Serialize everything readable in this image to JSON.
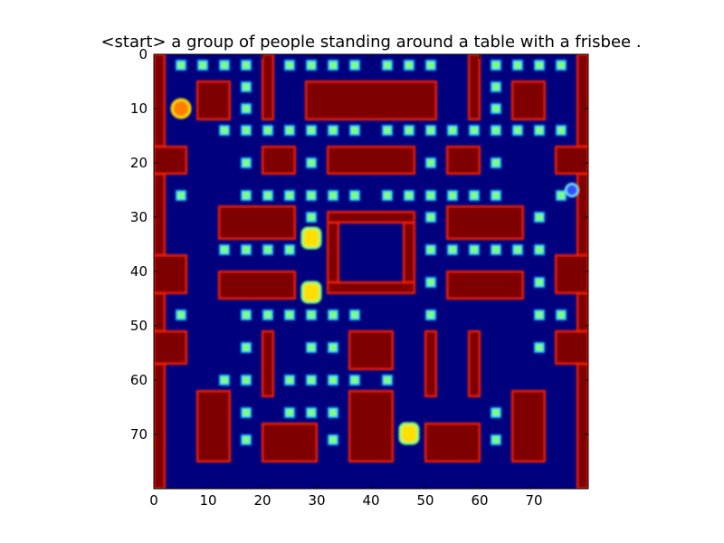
{
  "title": "<start> a group of people standing around a table with a frisbee .",
  "image": {
    "width": 80,
    "height": 80,
    "xlim": [
      0,
      80
    ],
    "ylim": [
      80,
      0
    ],
    "colormap": "jet",
    "background_color": "#00007f",
    "wall_color": "#7f0000",
    "edge_color": "#ff2000",
    "pellet_color": "#7fff7f",
    "pellet_edge_color": "#00b5ff",
    "ghost_color": "#ffe000",
    "pacman_color": "#ff8000"
  },
  "x_ticks": [
    0,
    10,
    20,
    30,
    40,
    50,
    60,
    70
  ],
  "y_ticks": [
    0,
    10,
    20,
    30,
    40,
    50,
    60,
    70
  ],
  "walls": [
    {
      "x": 0,
      "y": 0,
      "w": 2,
      "h": 80
    },
    {
      "x": 78,
      "y": 0,
      "w": 2,
      "h": 80
    },
    {
      "x": 0,
      "y": 17,
      "w": 6,
      "h": 5
    },
    {
      "x": 74,
      "y": 17,
      "w": 6,
      "h": 5
    },
    {
      "x": 0,
      "y": 37,
      "w": 6,
      "h": 7
    },
    {
      "x": 74,
      "y": 37,
      "w": 6,
      "h": 7
    },
    {
      "x": 0,
      "y": 51,
      "w": 6,
      "h": 6
    },
    {
      "x": 74,
      "y": 51,
      "w": 6,
      "h": 6
    },
    {
      "x": 8,
      "y": 5,
      "w": 6,
      "h": 7
    },
    {
      "x": 66,
      "y": 5,
      "w": 6,
      "h": 7
    },
    {
      "x": 20,
      "y": 0,
      "w": 2,
      "h": 12
    },
    {
      "x": 58,
      "y": 0,
      "w": 2,
      "h": 12
    },
    {
      "x": 28,
      "y": 5,
      "w": 24,
      "h": 7
    },
    {
      "x": 20,
      "y": 17,
      "w": 6,
      "h": 5
    },
    {
      "x": 54,
      "y": 17,
      "w": 6,
      "h": 5
    },
    {
      "x": 32,
      "y": 17,
      "w": 16,
      "h": 5
    },
    {
      "x": 12,
      "y": 28,
      "w": 14,
      "h": 6
    },
    {
      "x": 54,
      "y": 28,
      "w": 14,
      "h": 6
    },
    {
      "x": 12,
      "y": 40,
      "w": 14,
      "h": 5
    },
    {
      "x": 54,
      "y": 40,
      "w": 14,
      "h": 5
    },
    {
      "x": 32,
      "y": 29,
      "w": 2,
      "h": 15
    },
    {
      "x": 46,
      "y": 29,
      "w": 2,
      "h": 15
    },
    {
      "x": 32,
      "y": 29,
      "w": 16,
      "h": 2
    },
    {
      "x": 32,
      "y": 42,
      "w": 16,
      "h": 2
    },
    {
      "x": 20,
      "y": 51,
      "w": 2,
      "h": 12
    },
    {
      "x": 58,
      "y": 51,
      "w": 2,
      "h": 12
    },
    {
      "x": 36,
      "y": 51,
      "w": 8,
      "h": 7
    },
    {
      "x": 50,
      "y": 51,
      "w": 2,
      "h": 12
    },
    {
      "x": 8,
      "y": 62,
      "w": 6,
      "h": 13
    },
    {
      "x": 66,
      "y": 62,
      "w": 6,
      "h": 13
    },
    {
      "x": 20,
      "y": 68,
      "w": 10,
      "h": 7
    },
    {
      "x": 50,
      "y": 68,
      "w": 10,
      "h": 7
    },
    {
      "x": 36,
      "y": 62,
      "w": 8,
      "h": 13
    }
  ],
  "pellets": [
    [
      5,
      2
    ],
    [
      9,
      2
    ],
    [
      13,
      2
    ],
    [
      17,
      2
    ],
    [
      25,
      2
    ],
    [
      29,
      2
    ],
    [
      33,
      2
    ],
    [
      37,
      2
    ],
    [
      43,
      2
    ],
    [
      47,
      2
    ],
    [
      51,
      2
    ],
    [
      63,
      2
    ],
    [
      67,
      2
    ],
    [
      71,
      2
    ],
    [
      75,
      2
    ],
    [
      17,
      6
    ],
    [
      17,
      10
    ],
    [
      63,
      6
    ],
    [
      63,
      10
    ],
    [
      13,
      14
    ],
    [
      17,
      14
    ],
    [
      21,
      14
    ],
    [
      25,
      14
    ],
    [
      29,
      14
    ],
    [
      33,
      14
    ],
    [
      37,
      14
    ],
    [
      43,
      14
    ],
    [
      47,
      14
    ],
    [
      51,
      14
    ],
    [
      55,
      14
    ],
    [
      59,
      14
    ],
    [
      63,
      14
    ],
    [
      67,
      14
    ],
    [
      71,
      14
    ],
    [
      75,
      14
    ],
    [
      17,
      20
    ],
    [
      29,
      20
    ],
    [
      51,
      20
    ],
    [
      63,
      20
    ],
    [
      5,
      26
    ],
    [
      17,
      26
    ],
    [
      21,
      26
    ],
    [
      25,
      26
    ],
    [
      29,
      26
    ],
    [
      33,
      26
    ],
    [
      37,
      26
    ],
    [
      43,
      26
    ],
    [
      47,
      26
    ],
    [
      51,
      26
    ],
    [
      55,
      26
    ],
    [
      59,
      26
    ],
    [
      63,
      26
    ],
    [
      75,
      26
    ],
    [
      29,
      30
    ],
    [
      51,
      30
    ],
    [
      71,
      30
    ],
    [
      13,
      36
    ],
    [
      17,
      36
    ],
    [
      21,
      36
    ],
    [
      25,
      36
    ],
    [
      51,
      36
    ],
    [
      55,
      36
    ],
    [
      59,
      36
    ],
    [
      63,
      36
    ],
    [
      67,
      36
    ],
    [
      71,
      36
    ],
    [
      51,
      42
    ],
    [
      71,
      42
    ],
    [
      5,
      48
    ],
    [
      17,
      48
    ],
    [
      21,
      48
    ],
    [
      25,
      48
    ],
    [
      29,
      48
    ],
    [
      33,
      48
    ],
    [
      37,
      48
    ],
    [
      51,
      48
    ],
    [
      71,
      48
    ],
    [
      75,
      48
    ],
    [
      17,
      54
    ],
    [
      29,
      54
    ],
    [
      33,
      54
    ],
    [
      71,
      54
    ],
    [
      13,
      60
    ],
    [
      17,
      60
    ],
    [
      25,
      60
    ],
    [
      29,
      60
    ],
    [
      33,
      60
    ],
    [
      37,
      60
    ],
    [
      43,
      60
    ],
    [
      17,
      66
    ],
    [
      25,
      66
    ],
    [
      29,
      66
    ],
    [
      33,
      66
    ],
    [
      63,
      66
    ],
    [
      17,
      71
    ],
    [
      33,
      71
    ],
    [
      63,
      71
    ]
  ],
  "ghosts": [
    [
      29,
      34
    ],
    [
      29,
      44
    ],
    [
      47,
      70
    ]
  ],
  "pacman": [
    5,
    10
  ],
  "ghost_right": [
    77,
    25
  ]
}
